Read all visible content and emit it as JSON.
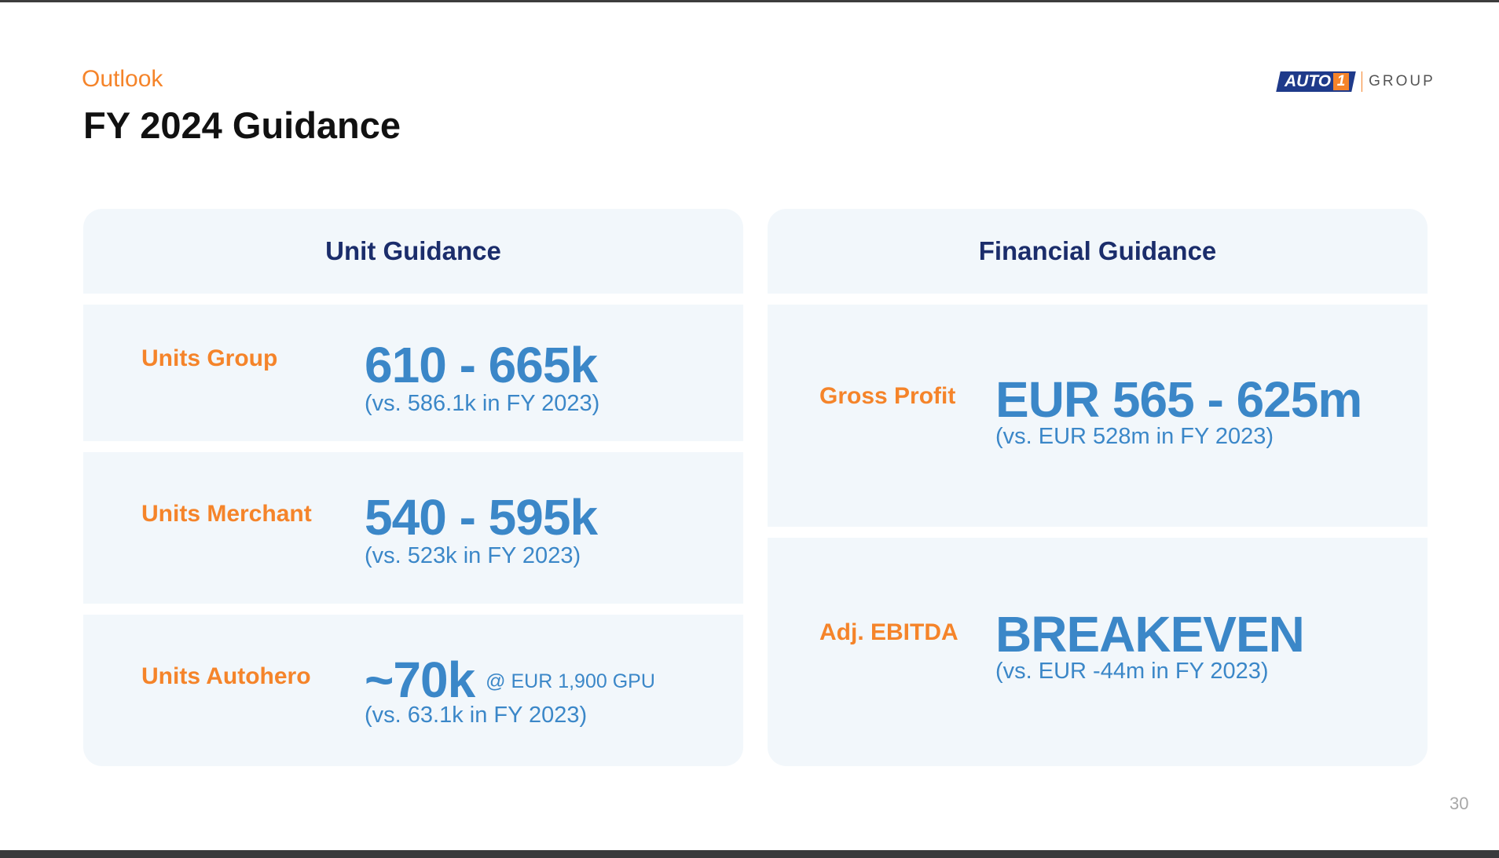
{
  "header": {
    "kicker": "Outlook",
    "title": "FY 2024 Guidance"
  },
  "logo": {
    "word": "AUTO",
    "digit": "1",
    "group": "GROUP"
  },
  "unit_guidance": {
    "title": "Unit Guidance",
    "rows": [
      {
        "label": "Units Group",
        "value": "610 - 665k",
        "note": "",
        "compare": "(vs. 586.1k in FY 2023)"
      },
      {
        "label": "Units Merchant",
        "value": "540 - 595k",
        "note": "",
        "compare": "(vs. 523k in FY 2023)"
      },
      {
        "label": "Units Autohero",
        "value": "~70k",
        "note": "@ EUR 1,900 GPU",
        "compare": "(vs. 63.1k in FY 2023)"
      }
    ]
  },
  "financial_guidance": {
    "title": "Financial Guidance",
    "rows": [
      {
        "label": "Gross Profit",
        "value": "EUR 565 - 625m",
        "compare": "(vs. EUR 528m in FY 2023)"
      },
      {
        "label": "Adj. EBITDA",
        "value": "BREAKEVEN",
        "compare": "(vs. EUR -44m in FY 2023)"
      }
    ]
  },
  "footer": {
    "page_number": "30"
  },
  "colors": {
    "accent_orange": "#f5842a",
    "value_blue": "#3b87c8",
    "heading_navy": "#1b2d6b",
    "card_bg": "#f2f7fb"
  }
}
